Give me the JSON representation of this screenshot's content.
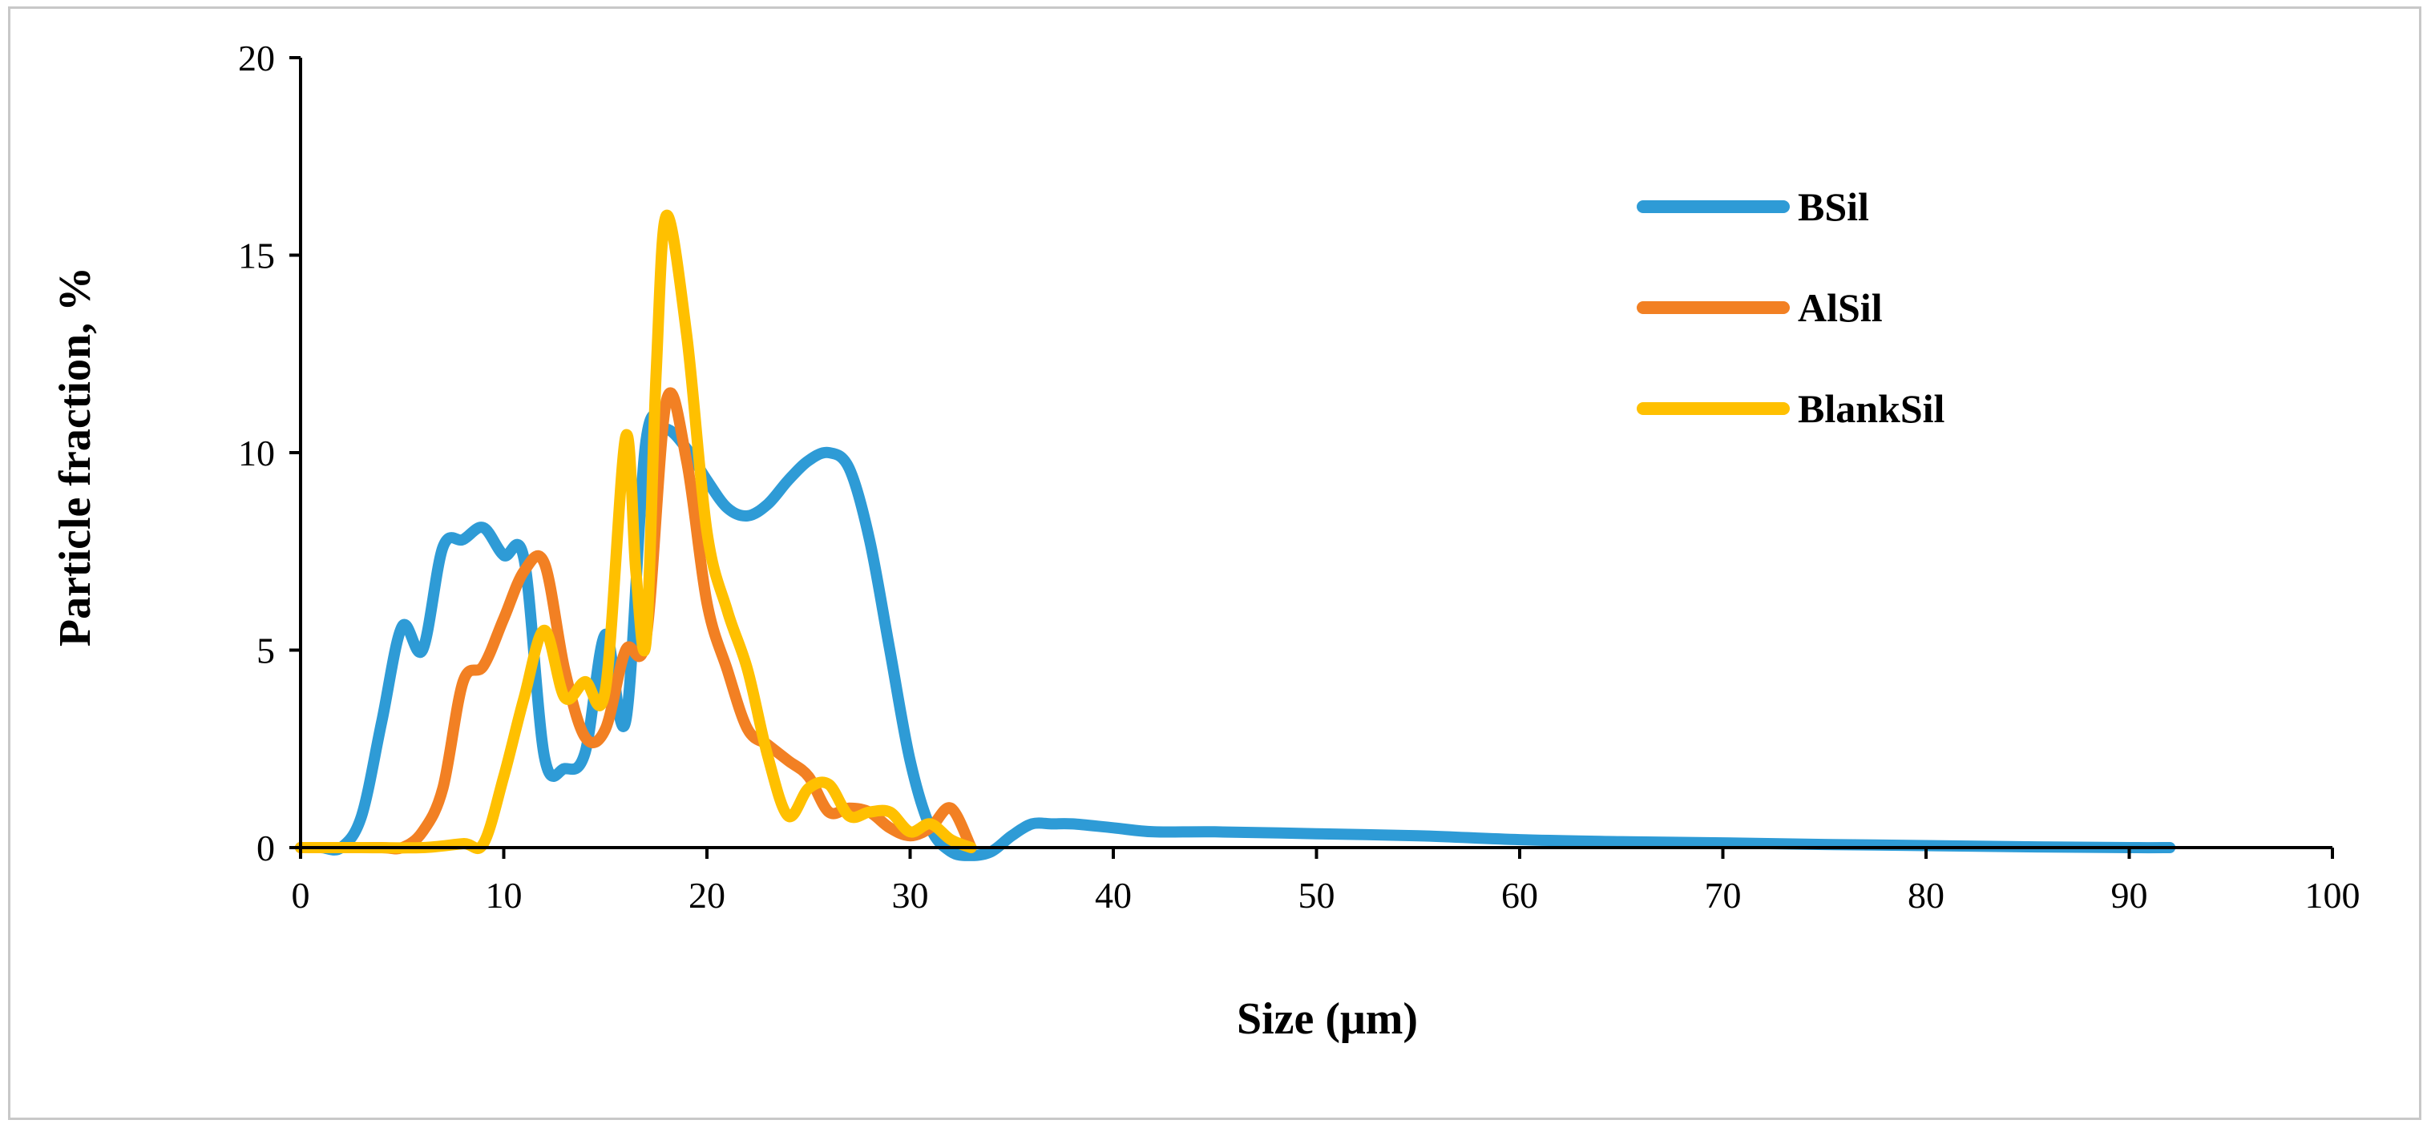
{
  "chart_data": {
    "type": "line",
    "title": "",
    "xlabel": "Size (μm)",
    "ylabel": "Particle fraction, %",
    "xlim": [
      0,
      100
    ],
    "ylim": [
      0,
      20
    ],
    "xticks": [
      0,
      10,
      20,
      30,
      40,
      50,
      60,
      70,
      80,
      90,
      100
    ],
    "yticks": [
      0,
      5,
      10,
      15,
      20
    ],
    "legend_position": "top-right",
    "series": [
      {
        "name": "BSil",
        "color": "#2E9BD6",
        "x": [
          0,
          1,
          2,
          3,
          4,
          5,
          6,
          7,
          8,
          9,
          10,
          11,
          12,
          13,
          14,
          15,
          16,
          17,
          18,
          19,
          20,
          21,
          22,
          23,
          24,
          25,
          26,
          27,
          28,
          29,
          30,
          31,
          32,
          33,
          34,
          35,
          36,
          37,
          38,
          40,
          42,
          45,
          50,
          55,
          60,
          65,
          70,
          75,
          80,
          85,
          90,
          92
        ],
        "y": [
          0,
          0,
          0,
          0.8,
          3.2,
          5.6,
          5.0,
          7.6,
          7.8,
          8.1,
          7.4,
          7.3,
          2.3,
          2.0,
          2.4,
          5.4,
          3.2,
          10.3,
          10.6,
          10.1,
          9.3,
          8.6,
          8.4,
          8.7,
          9.3,
          9.8,
          10.0,
          9.6,
          7.8,
          5.0,
          2.2,
          0.5,
          -0.1,
          -0.2,
          -0.1,
          0.3,
          0.6,
          0.6,
          0.6,
          0.5,
          0.4,
          0.4,
          0.35,
          0.3,
          0.2,
          0.15,
          0.12,
          0.08,
          0.05,
          0.02,
          0.0,
          0.0
        ]
      },
      {
        "name": "AlSil",
        "color": "#F28023",
        "x": [
          0,
          2,
          4,
          5,
          6,
          7,
          8,
          9,
          10,
          11,
          12,
          13,
          14,
          15,
          16,
          17,
          18,
          19,
          20,
          21,
          22,
          23,
          24,
          25,
          26,
          27,
          28,
          29,
          30,
          31,
          32,
          33
        ],
        "y": [
          0,
          0,
          0,
          0,
          0.4,
          1.5,
          4.2,
          4.6,
          5.8,
          7.0,
          7.2,
          4.5,
          2.8,
          3.0,
          5.0,
          5.3,
          11.3,
          9.8,
          6.2,
          4.5,
          3.0,
          2.6,
          2.2,
          1.8,
          0.9,
          1.0,
          0.9,
          0.5,
          0.3,
          0.5,
          1.0,
          0
        ]
      },
      {
        "name": "BlankSil",
        "color": "#FFC000",
        "x": [
          0,
          3,
          6,
          8,
          9,
          10,
          11,
          12,
          13,
          14,
          15,
          16,
          16.5,
          17,
          17.5,
          18,
          19,
          20,
          21,
          22,
          23,
          24,
          25,
          26,
          27,
          28,
          29,
          30,
          31,
          32,
          33
        ],
        "y": [
          0,
          0,
          0,
          0.1,
          0.1,
          1.8,
          3.8,
          5.5,
          3.8,
          4.2,
          4.0,
          10.4,
          7.0,
          5.2,
          12.0,
          16.0,
          13.0,
          8.0,
          6.0,
          4.5,
          2.3,
          0.8,
          1.5,
          1.6,
          0.8,
          0.9,
          0.9,
          0.4,
          0.6,
          0.2,
          0
        ]
      }
    ]
  }
}
